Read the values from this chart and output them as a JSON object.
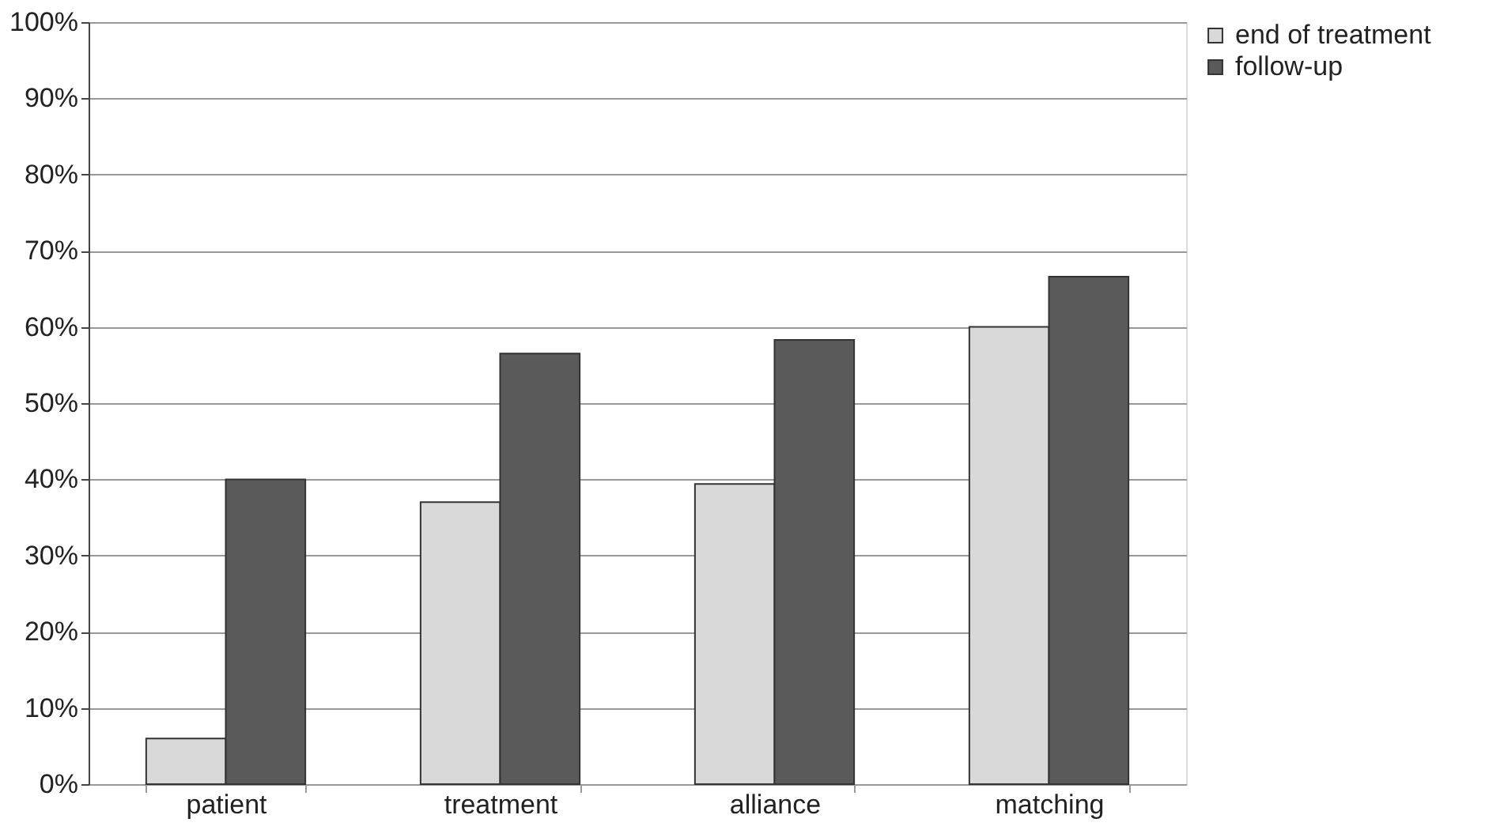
{
  "chart_data": {
    "type": "bar",
    "categories": [
      "patient",
      "treatment",
      "alliance",
      "matching"
    ],
    "series": [
      {
        "name": "end of treatment",
        "color": "#d9d9d9",
        "values": [
          6,
          37,
          39.4,
          60
        ]
      },
      {
        "name": "follow-up",
        "color": "#5a5a5a",
        "values": [
          40,
          56.5,
          58.3,
          66.6
        ]
      }
    ],
    "ylim": [
      0,
      100
    ],
    "yticks": [
      {
        "value": 0,
        "label": "0%"
      },
      {
        "value": 10,
        "label": "10%"
      },
      {
        "value": 20,
        "label": "20%"
      },
      {
        "value": 30,
        "label": "30%"
      },
      {
        "value": 40,
        "label": "40%"
      },
      {
        "value": 50,
        "label": "50%"
      },
      {
        "value": 60,
        "label": "60%"
      },
      {
        "value": 70,
        "label": "70%"
      },
      {
        "value": 80,
        "label": "80%"
      },
      {
        "value": 90,
        "label": "90%"
      },
      {
        "value": 100,
        "label": "100%"
      }
    ],
    "grid": "y",
    "legend": "right"
  }
}
